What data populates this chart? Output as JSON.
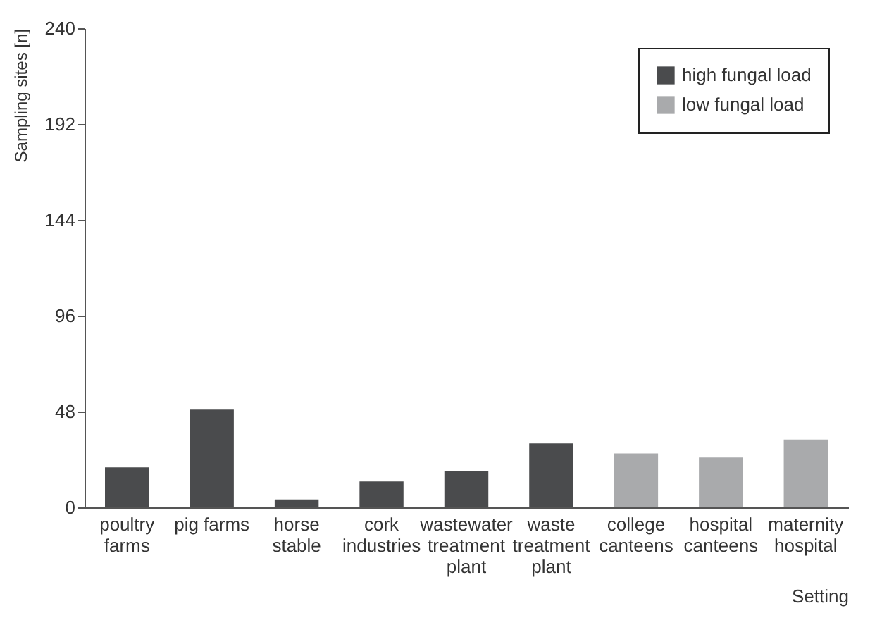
{
  "chart_data": {
    "type": "bar",
    "xlabel": "Setting",
    "ylabel": "Sampling sites [n]",
    "categories": [
      "poultry farms",
      "pig farms",
      "horse stable",
      "cork industries",
      "wastewater treatment plant",
      "waste treatment plant",
      "college canteens",
      "hospital canteens",
      "maternity hospital"
    ],
    "series": [
      {
        "name": "high fungal load",
        "color": "#4a4b4d",
        "values": [
          20,
          49,
          4,
          13,
          18,
          32,
          null,
          null,
          null
        ]
      },
      {
        "name": "low fungal load",
        "color": "#a9aaac",
        "values": [
          null,
          null,
          null,
          null,
          null,
          null,
          27,
          25,
          34
        ]
      }
    ],
    "ylim": [
      0,
      240
    ],
    "yticks": [
      0,
      48,
      96,
      144,
      192,
      240
    ],
    "grid": false,
    "legend": "top right"
  }
}
